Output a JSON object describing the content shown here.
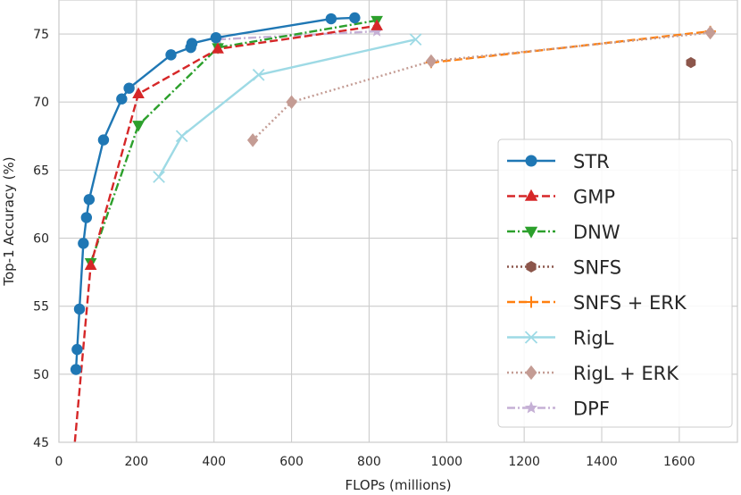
{
  "chart_data": {
    "type": "line",
    "title": "",
    "xlabel": "FLOPs (millions)",
    "ylabel": "Top-1 Accuracy (%)",
    "xlim": [
      0,
      1750
    ],
    "ylim": [
      45,
      77.5
    ],
    "xticks": [
      0,
      200,
      400,
      600,
      800,
      1000,
      1200,
      1400,
      1600
    ],
    "yticks": [
      45,
      50,
      55,
      60,
      65,
      70,
      75
    ],
    "grid": true,
    "legend_position": "bottom-right",
    "series": [
      {
        "name": "STR",
        "color": "#1f77b4",
        "linestyle": "solid",
        "marker": "circle",
        "x": [
          44,
          47,
          53,
          63,
          71,
          78,
          115,
          162,
          181,
          289,
          340,
          343,
          405,
          702,
          763
        ],
        "y": [
          50.35,
          51.82,
          54.79,
          59.62,
          61.51,
          62.84,
          67.22,
          70.23,
          71.02,
          73.47,
          74.01,
          74.31,
          74.73,
          76.12,
          76.19
        ]
      },
      {
        "name": "GMP",
        "color": "#d62728",
        "linestyle": "dashed",
        "marker": "triangle-up",
        "x": [
          41,
          82,
          205,
          410,
          820
        ],
        "y": [
          45,
          58,
          70.6,
          73.9,
          75.6
        ]
      },
      {
        "name": "DNW",
        "color": "#2ca02c",
        "linestyle": "dashdot",
        "marker": "triangle-down",
        "x": [
          82,
          205,
          410,
          820
        ],
        "y": [
          58.2,
          68.3,
          74.0,
          76.0
        ]
      },
      {
        "name": "SNFS",
        "color": "#8c564b",
        "linestyle": "dotted",
        "marker": "hexagon",
        "x": [
          1630
        ],
        "y": [
          72.9
        ]
      },
      {
        "name": "SNFS + ERK",
        "color": "#ff7f0e",
        "linestyle": "dashed",
        "marker": "plus",
        "x": [
          960,
          1680
        ],
        "y": [
          72.9,
          75.2
        ]
      },
      {
        "name": "RigL",
        "color": "#9edae5",
        "linestyle": "solid",
        "marker": "x",
        "x": [
          258,
          317,
          515,
          920
        ],
        "y": [
          64.5,
          67.5,
          72.0,
          74.6
        ]
      },
      {
        "name": "RigL + ERK",
        "color": "#c49c94",
        "linestyle": "dotted",
        "marker": "diamond",
        "x": [
          500,
          600,
          960,
          1680
        ],
        "y": [
          67.2,
          70.0,
          73.0,
          75.1
        ]
      },
      {
        "name": "DPF",
        "color": "#c5b0d5",
        "linestyle": "dashdot",
        "marker": "star",
        "x": [
          410,
          820
        ],
        "y": [
          74.6,
          75.2
        ]
      }
    ]
  }
}
